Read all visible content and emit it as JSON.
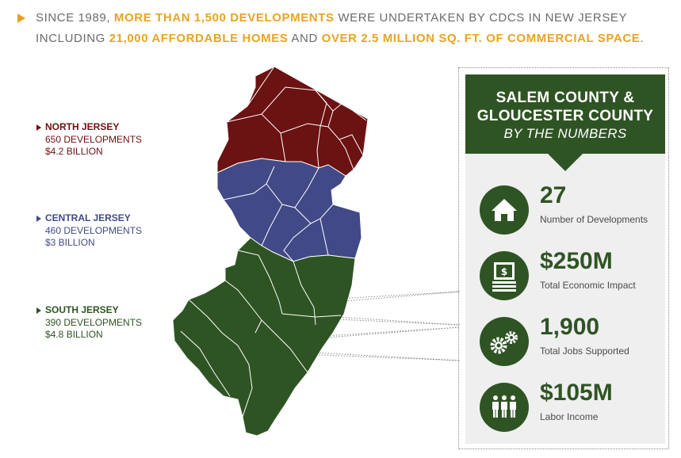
{
  "header": {
    "p1": "Since 1989, ",
    "h1": "more than 1,500 developments",
    "p2": " were undertaken by CDCs in New Jersey including ",
    "h2": "21,000 affordable homes",
    "p3": " and ",
    "h3": "over 2.5 million sq. ft. of commercial space",
    "p4": "."
  },
  "regions": [
    {
      "name": "NORTH JERSEY",
      "developments": "650 DEVELOPMENTS",
      "amount": "$4.2 BILLION",
      "color": "#6b1212"
    },
    {
      "name": "CENTRAL JERSEY",
      "developments": "460 DEVELOPMENTS",
      "amount": "$3 BILLION",
      "color": "#414a86"
    },
    {
      "name": "SOUTH JERSEY",
      "developments": "390 DEVELOPMENTS",
      "amount": "$4.8 BILLION",
      "color": "#2f5424"
    }
  ],
  "panel": {
    "title_line1": "SALEM COUNTY &",
    "title_line2": "GLOUCESTER COUNTY",
    "subtitle": "BY THE NUMBERS",
    "stats": [
      {
        "value": "27",
        "label": "Number of Developments",
        "icon": "house-icon"
      },
      {
        "value": "$250M",
        "label": "Total Economic Impact",
        "icon": "money-stack-icon"
      },
      {
        "value": "1,900",
        "label": "Total Jobs Supported",
        "icon": "gears-icon"
      },
      {
        "value": "$105M",
        "label": "Labor Income",
        "icon": "people-icon"
      }
    ]
  },
  "colors": {
    "accent": "#e8a423",
    "north": "#6b1212",
    "central": "#414a86",
    "south": "#2f5424"
  }
}
